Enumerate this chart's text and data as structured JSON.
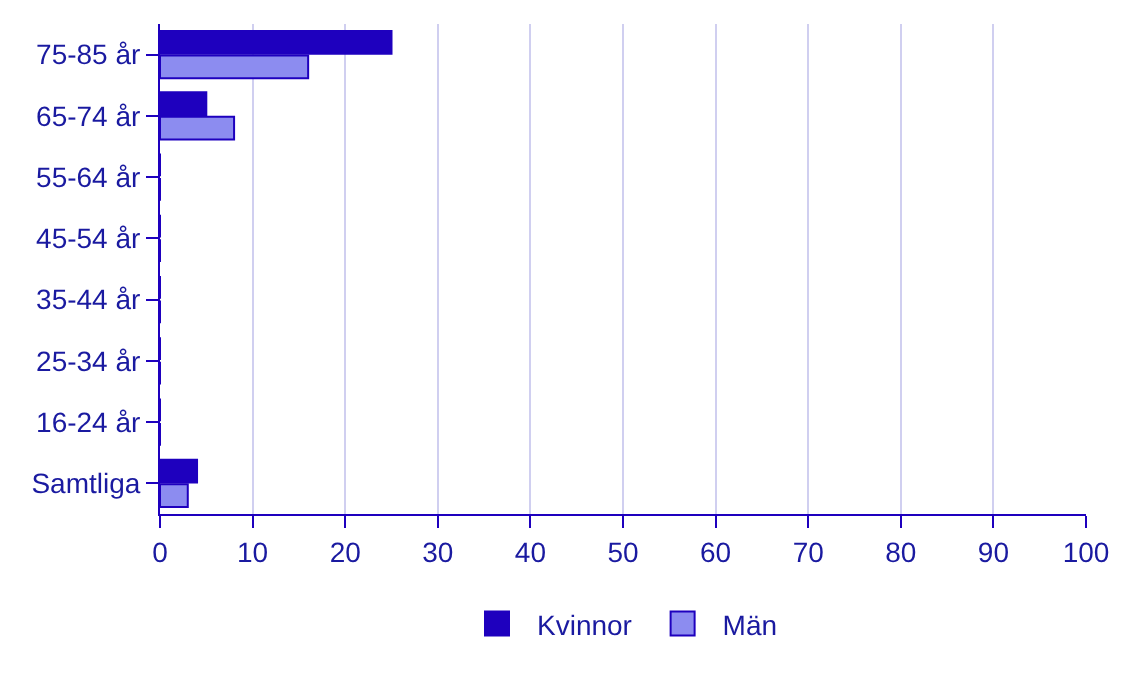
{
  "chart_data": {
    "type": "bar",
    "orientation": "horizontal",
    "categories": [
      "75-85 år",
      "65-74 år",
      "55-64 år",
      "45-54 år",
      "35-44 år",
      "25-34 år",
      "16-24 år",
      "Samtliga"
    ],
    "series": [
      {
        "name": "Kvinnor",
        "color": "#1e00be",
        "values": [
          25,
          5,
          0,
          0,
          0,
          0,
          0,
          4
        ]
      },
      {
        "name": "Män",
        "color": "#8c8cf0",
        "values": [
          16,
          8,
          0,
          0,
          0,
          0,
          0,
          3
        ]
      }
    ],
    "xlim": [
      0,
      100
    ],
    "xticks": [
      0,
      10,
      20,
      30,
      40,
      50,
      60,
      70,
      80,
      90,
      100
    ],
    "grid": "x",
    "legend": "bottom"
  }
}
